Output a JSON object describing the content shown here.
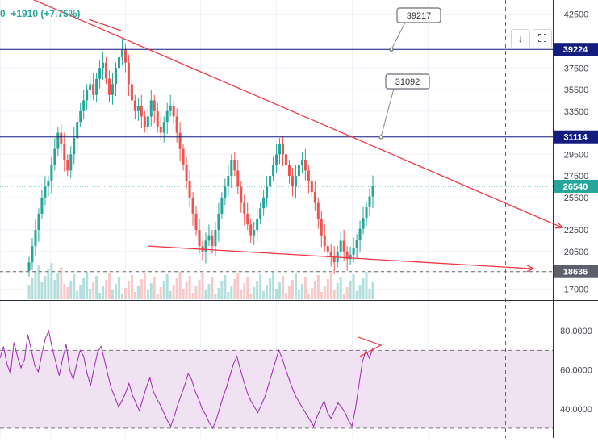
{
  "header": {
    "change_text": "+1910 (+7.75%)",
    "leading_char": "0"
  },
  "buttons": {
    "goto_realtime": "↓"
  },
  "colors": {
    "up": "#26a69a",
    "down": "#ef5350",
    "trendline": "#f23645",
    "level": "#131c7f",
    "rsi": "#9c27b0",
    "rsi_band": "#f0e2f3",
    "price_tag": "#131722",
    "last_price": "#26a69a"
  },
  "chart_data": [
    {
      "type": "candlestick",
      "price_scale": [
        42500,
        39217,
        37500,
        35500,
        33500,
        31092,
        29500,
        27500,
        25500,
        22500,
        20500,
        18636,
        17000
      ],
      "ylim": [
        16000,
        43200
      ],
      "horizontal_levels": [
        {
          "label": "39224",
          "value": 39224,
          "color": "#131c7f"
        },
        {
          "label": "31114",
          "value": 31114,
          "color": "#131c7f"
        }
      ],
      "last_price": {
        "label": "26540",
        "value": 26540
      },
      "support_marker": {
        "label": "18636",
        "value": 18636
      },
      "callouts": [
        {
          "label": "39217",
          "value": 39217
        },
        {
          "label": "31092",
          "value": 31092
        }
      ],
      "trendlines": [
        {
          "name": "descending resistance",
          "from": {
            "bar": 0,
            "price": 44000
          },
          "to": {
            "bar": 166,
            "price": 22700
          }
        },
        {
          "name": "lower support",
          "from": {
            "bar": 37,
            "price": 21000
          },
          "to": {
            "bar": 157,
            "price": 18900
          }
        }
      ],
      "closes": [
        19500,
        21000,
        22500,
        24000,
        25500,
        26500,
        27000,
        28500,
        30000,
        31500,
        30500,
        29000,
        28000,
        29500,
        31000,
        32500,
        33500,
        34500,
        35500,
        36000,
        35000,
        36500,
        37500,
        38000,
        36500,
        35000,
        36000,
        37500,
        38500,
        39200,
        38000,
        36000,
        34500,
        33500,
        34000,
        33000,
        32000,
        33000,
        34500,
        33500,
        32000,
        31500,
        32500,
        33500,
        34000,
        33000,
        31500,
        30000,
        28500,
        27000,
        25500,
        24000,
        22500,
        21000,
        20500,
        21500,
        22000,
        21000,
        22500,
        24000,
        25500,
        26500,
        27500,
        29000,
        28000,
        26500,
        25000,
        24000,
        23000,
        22000,
        22500,
        23500,
        24500,
        25500,
        26500,
        27500,
        28500,
        29500,
        30500,
        29500,
        28500,
        27500,
        26500,
        27500,
        28500,
        29000,
        28000,
        27000,
        26000,
        25000,
        23500,
        22000,
        21000,
        20500,
        20000,
        19500,
        20500,
        21500,
        20500,
        19800,
        20200,
        20800,
        21600,
        22600,
        23600,
        24600,
        25600,
        26540
      ],
      "rsi": {
        "ylim": [
          25,
          95
        ],
        "ticks": [
          "80.0000",
          "60.0000",
          "40.0000"
        ],
        "band": [
          30,
          70
        ],
        "values": [
          66,
          72,
          63,
          58,
          74,
          67,
          61,
          65,
          78,
          70,
          62,
          59,
          68,
          76,
          80,
          71,
          64,
          57,
          66,
          73,
          60,
          55,
          63,
          70,
          67,
          58,
          52,
          61,
          69,
          72,
          65,
          57,
          50,
          46,
          41,
          44,
          48,
          53,
          47,
          43,
          39,
          45,
          51,
          56,
          49,
          45,
          42,
          38,
          34,
          31,
          36,
          42,
          47,
          52,
          58,
          55,
          49,
          45,
          40,
          37,
          33,
          30,
          34,
          40,
          46,
          51,
          57,
          63,
          67,
          60,
          54,
          48,
          44,
          41,
          38,
          42,
          46,
          52,
          58,
          64,
          70,
          66,
          60,
          55,
          50,
          46,
          43,
          40,
          37,
          34,
          31,
          36,
          40,
          44,
          38,
          35,
          39,
          43,
          41,
          38,
          34,
          31,
          40,
          52,
          64,
          70,
          66,
          71
        ]
      }
    }
  ]
}
